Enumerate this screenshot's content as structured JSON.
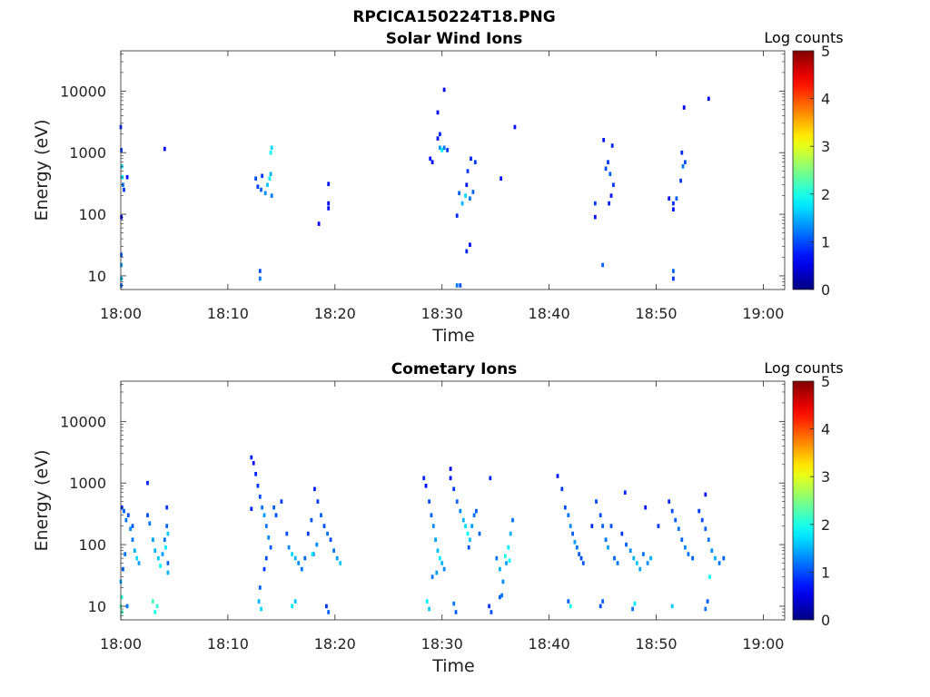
{
  "figure": {
    "title": "RPCICA150224T18.PNG"
  },
  "chart_data": [
    {
      "type": "heatmap",
      "title": "Solar Wind Ions",
      "xlabel": "Time",
      "ylabel": "Energy (eV)",
      "yscale": "log",
      "ylim": [
        6,
        45000
      ],
      "xlim_minutes": [
        0,
        62
      ],
      "xtick_labels": [
        "18:00",
        "18:10",
        "18:20",
        "18:30",
        "18:40",
        "18:50",
        "19:00"
      ],
      "ytick_labels": [
        "10",
        "100",
        "1000",
        "10000"
      ],
      "colorbar": {
        "label": "Log counts",
        "range": [
          0,
          5
        ],
        "ticks": [
          "0",
          "1",
          "2",
          "3",
          "4",
          "5"
        ],
        "colormap": "jet"
      },
      "cells": [
        [
          0.0,
          2600,
          0.8
        ],
        [
          0.05,
          1100,
          0.9
        ],
        [
          0.1,
          600,
          1.7
        ],
        [
          0.15,
          400,
          1.8
        ],
        [
          0.2,
          300,
          1.2
        ],
        [
          0.3,
          250,
          0.9
        ],
        [
          0.05,
          90,
          0.6
        ],
        [
          0.05,
          22,
          1.1
        ],
        [
          0.05,
          15,
          1.4
        ],
        [
          0.05,
          9,
          1.6
        ],
        [
          0.05,
          7,
          1.2
        ],
        [
          0.6,
          400,
          0.7
        ],
        [
          4.1,
          1150,
          0.6
        ],
        [
          12.6,
          380,
          1.0
        ],
        [
          12.8,
          280,
          0.9
        ],
        [
          13.1,
          250,
          1.1
        ],
        [
          13.5,
          220,
          1.3
        ],
        [
          13.7,
          300,
          1.6
        ],
        [
          13.9,
          380,
          1.8
        ],
        [
          14.0,
          450,
          1.5
        ],
        [
          14.1,
          200,
          1.2
        ],
        [
          14.0,
          1000,
          1.9
        ],
        [
          14.1,
          1200,
          1.7
        ],
        [
          13.2,
          420,
          0.9
        ],
        [
          13.0,
          12,
          1.0
        ],
        [
          13.0,
          9,
          1.2
        ],
        [
          19.4,
          310,
          0.7
        ],
        [
          19.4,
          150,
          0.6
        ],
        [
          19.4,
          125,
          0.7
        ],
        [
          18.5,
          70,
          0.6
        ],
        [
          29.6,
          1700,
          0.7
        ],
        [
          29.8,
          1200,
          1.4
        ],
        [
          30.0,
          1100,
          1.8
        ],
        [
          30.2,
          1200,
          1.2
        ],
        [
          30.5,
          1100,
          0.9
        ],
        [
          29.8,
          2000,
          0.8
        ],
        [
          30.2,
          10500,
          0.6
        ],
        [
          29.6,
          4500,
          0.6
        ],
        [
          28.9,
          800,
          0.7
        ],
        [
          29.1,
          700,
          0.6
        ],
        [
          31.6,
          220,
          1.1
        ],
        [
          31.9,
          150,
          1.5
        ],
        [
          32.2,
          200,
          1.7
        ],
        [
          32.6,
          180,
          1.2
        ],
        [
          32.9,
          230,
          1.1
        ],
        [
          32.4,
          500,
          0.9
        ],
        [
          32.7,
          800,
          0.8
        ],
        [
          33.1,
          700,
          0.9
        ],
        [
          32.3,
          300,
          0.7
        ],
        [
          31.4,
          95,
          0.8
        ],
        [
          32.3,
          25,
          0.8
        ],
        [
          32.6,
          32,
          0.7
        ],
        [
          31.4,
          7,
          1.2
        ],
        [
          31.7,
          7,
          1.0
        ],
        [
          35.5,
          380,
          0.7
        ],
        [
          36.8,
          2600,
          0.7
        ],
        [
          44.3,
          150,
          0.9
        ],
        [
          44.3,
          90,
          0.7
        ],
        [
          45.1,
          1600,
          0.7
        ],
        [
          45.3,
          550,
          1.0
        ],
        [
          45.5,
          700,
          0.9
        ],
        [
          45.7,
          450,
          1.1
        ],
        [
          45.9,
          1300,
          0.8
        ],
        [
          46.0,
          300,
          0.9
        ],
        [
          45.8,
          200,
          0.7
        ],
        [
          45.6,
          150,
          0.8
        ],
        [
          45.0,
          15,
          1.1
        ],
        [
          51.2,
          180,
          0.7
        ],
        [
          51.6,
          150,
          0.9
        ],
        [
          51.9,
          180,
          1.1
        ],
        [
          52.3,
          350,
          0.9
        ],
        [
          52.5,
          600,
          1.2
        ],
        [
          52.7,
          700,
          1.0
        ],
        [
          52.4,
          1000,
          0.8
        ],
        [
          52.6,
          5400,
          0.6
        ],
        [
          51.6,
          120,
          0.7
        ],
        [
          51.6,
          12,
          1.1
        ],
        [
          51.6,
          9,
          0.9
        ],
        [
          54.9,
          7500,
          0.6
        ]
      ]
    },
    {
      "type": "heatmap",
      "title": "Cometary Ions",
      "xlabel": "Time",
      "ylabel": "Energy (eV)",
      "yscale": "log",
      "ylim": [
        6,
        45000
      ],
      "xlim_minutes": [
        0,
        62
      ],
      "xtick_labels": [
        "18:00",
        "18:10",
        "18:20",
        "18:30",
        "18:40",
        "18:50",
        "19:00"
      ],
      "ytick_labels": [
        "10",
        "100",
        "1000",
        "10000"
      ],
      "colorbar": {
        "label": "Log counts",
        "range": [
          0,
          5
        ],
        "ticks": [
          "0",
          "1",
          "2",
          "3",
          "4",
          "5"
        ],
        "colormap": "jet"
      },
      "cells": [
        [
          0.1,
          400,
          0.8
        ],
        [
          0.3,
          350,
          1.1
        ],
        [
          0.5,
          250,
          1.2
        ],
        [
          0.7,
          300,
          1.0
        ],
        [
          0.9,
          180,
          1.3
        ],
        [
          1.1,
          120,
          1.2
        ],
        [
          1.3,
          80,
          1.5
        ],
        [
          1.5,
          60,
          1.7
        ],
        [
          1.7,
          50,
          1.4
        ],
        [
          1.1,
          200,
          1.1
        ],
        [
          2.5,
          300,
          1.0
        ],
        [
          2.7,
          220,
          1.2
        ],
        [
          3.0,
          120,
          1.4
        ],
        [
          3.2,
          80,
          1.5
        ],
        [
          3.5,
          60,
          1.6
        ],
        [
          3.7,
          45,
          1.9
        ],
        [
          3.9,
          70,
          1.4
        ],
        [
          4.1,
          120,
          1.2
        ],
        [
          4.3,
          200,
          1.1
        ],
        [
          4.3,
          400,
          0.9
        ],
        [
          2.5,
          1000,
          0.8
        ],
        [
          0.4,
          70,
          1.2
        ],
        [
          0.2,
          40,
          1.1
        ],
        [
          0.0,
          25,
          1.5
        ],
        [
          0.0,
          10,
          2.3
        ],
        [
          0.1,
          14,
          2.1
        ],
        [
          0.1,
          8,
          2.2
        ],
        [
          0.6,
          10,
          1.2
        ],
        [
          3.0,
          12,
          2.2
        ],
        [
          3.4,
          10,
          2.1
        ],
        [
          3.2,
          8,
          2.0
        ],
        [
          4.4,
          50,
          1.1
        ],
        [
          4.4,
          35,
          1.5
        ],
        [
          4.2,
          90,
          1.8
        ],
        [
          4.4,
          150,
          1.6
        ],
        [
          12.2,
          2600,
          0.8
        ],
        [
          12.4,
          2100,
          0.7
        ],
        [
          12.6,
          1400,
          0.8
        ],
        [
          12.8,
          900,
          0.9
        ],
        [
          13.0,
          600,
          1.0
        ],
        [
          13.2,
          400,
          1.2
        ],
        [
          13.4,
          300,
          1.4
        ],
        [
          13.6,
          200,
          1.2
        ],
        [
          13.8,
          130,
          1.3
        ],
        [
          14.0,
          90,
          1.1
        ],
        [
          13.6,
          60,
          1.0
        ],
        [
          13.4,
          40,
          0.9
        ],
        [
          13.0,
          20,
          1.1
        ],
        [
          14.3,
          400,
          1.1
        ],
        [
          14.5,
          300,
          1.0
        ],
        [
          12.2,
          380,
          0.8
        ],
        [
          15.0,
          500,
          0.9
        ],
        [
          15.5,
          150,
          1.0
        ],
        [
          15.7,
          90,
          1.3
        ],
        [
          16.0,
          70,
          1.7
        ],
        [
          16.3,
          60,
          1.5
        ],
        [
          16.6,
          50,
          1.3
        ],
        [
          16.9,
          40,
          1.2
        ],
        [
          17.2,
          60,
          1.1
        ],
        [
          17.5,
          150,
          0.9
        ],
        [
          17.8,
          250,
          1.0
        ],
        [
          18.1,
          800,
          0.8
        ],
        [
          18.4,
          500,
          0.9
        ],
        [
          18.7,
          300,
          1.1
        ],
        [
          19.0,
          200,
          1.0
        ],
        [
          19.3,
          150,
          1.2
        ],
        [
          19.6,
          120,
          1.0
        ],
        [
          19.9,
          80,
          1.2
        ],
        [
          20.2,
          60,
          1.4
        ],
        [
          20.5,
          50,
          1.6
        ],
        [
          18.3,
          100,
          1.3
        ],
        [
          18.0,
          70,
          1.2
        ],
        [
          12.9,
          12,
          1.5
        ],
        [
          13.1,
          9,
          1.7
        ],
        [
          16.0,
          10,
          1.8
        ],
        [
          16.3,
          12,
          1.6
        ],
        [
          19.2,
          10,
          0.9
        ],
        [
          19.4,
          8,
          1.1
        ],
        [
          17.9,
          70,
          1.8
        ],
        [
          28.3,
          1200,
          0.8
        ],
        [
          28.5,
          900,
          0.7
        ],
        [
          28.8,
          500,
          1.0
        ],
        [
          29.0,
          300,
          1.1
        ],
        [
          29.2,
          200,
          1.3
        ],
        [
          29.4,
          120,
          1.4
        ],
        [
          29.6,
          80,
          1.6
        ],
        [
          29.8,
          60,
          1.8
        ],
        [
          30.0,
          50,
          1.5
        ],
        [
          30.2,
          40,
          1.3
        ],
        [
          29.5,
          35,
          1.4
        ],
        [
          29.1,
          30,
          1.2
        ],
        [
          30.8,
          1200,
          0.7
        ],
        [
          31.1,
          800,
          0.9
        ],
        [
          31.4,
          500,
          1.1
        ],
        [
          31.7,
          350,
          1.3
        ],
        [
          32.0,
          250,
          1.5
        ],
        [
          32.2,
          200,
          1.7
        ],
        [
          32.4,
          150,
          1.9
        ],
        [
          32.6,
          120,
          1.6
        ],
        [
          32.8,
          200,
          1.4
        ],
        [
          33.0,
          300,
          1.2
        ],
        [
          33.2,
          350,
          1.1
        ],
        [
          32.5,
          90,
          1.0
        ],
        [
          33.5,
          150,
          1.1
        ],
        [
          30.8,
          1700,
          0.6
        ],
        [
          34.5,
          1200,
          0.8
        ],
        [
          35.1,
          60,
          1.2
        ],
        [
          35.4,
          40,
          1.5
        ],
        [
          35.7,
          25,
          1.3
        ],
        [
          36.0,
          50,
          1.4
        ],
        [
          36.2,
          90,
          1.8
        ],
        [
          36.4,
          150,
          1.5
        ],
        [
          36.6,
          250,
          1.2
        ],
        [
          35.9,
          65,
          2.0
        ],
        [
          36.3,
          55,
          1.9
        ],
        [
          28.6,
          12,
          1.8
        ],
        [
          28.8,
          9,
          1.6
        ],
        [
          31.1,
          11,
          1.2
        ],
        [
          31.3,
          8,
          1.1
        ],
        [
          34.4,
          10,
          0.9
        ],
        [
          34.6,
          8,
          1.0
        ],
        [
          35.4,
          14,
          1.1
        ],
        [
          35.6,
          15,
          1.2
        ],
        [
          40.8,
          1300,
          0.7
        ],
        [
          41.2,
          800,
          0.9
        ],
        [
          41.5,
          400,
          1.0
        ],
        [
          42.0,
          200,
          1.3
        ],
        [
          42.2,
          150,
          1.1
        ],
        [
          42.4,
          110,
          1.4
        ],
        [
          42.6,
          90,
          1.2
        ],
        [
          42.8,
          70,
          1.1
        ],
        [
          43.0,
          60,
          1.0
        ],
        [
          43.2,
          50,
          1.1
        ],
        [
          41.8,
          300,
          1.2
        ],
        [
          44.0,
          200,
          0.8
        ],
        [
          44.4,
          500,
          1.0
        ],
        [
          44.8,
          300,
          1.0
        ],
        [
          45.0,
          200,
          1.1
        ],
        [
          45.3,
          120,
          1.2
        ],
        [
          45.5,
          90,
          1.4
        ],
        [
          45.8,
          200,
          1.0
        ],
        [
          46.1,
          60,
          1.1
        ],
        [
          46.4,
          50,
          1.2
        ],
        [
          46.8,
          150,
          0.9
        ],
        [
          47.2,
          100,
          1.1
        ],
        [
          47.6,
          80,
          1.3
        ],
        [
          47.9,
          60,
          1.5
        ],
        [
          48.2,
          50,
          1.6
        ],
        [
          48.5,
          40,
          1.4
        ],
        [
          48.8,
          70,
          1.2
        ],
        [
          49.2,
          50,
          1.3
        ],
        [
          49.5,
          60,
          1.5
        ],
        [
          50.2,
          200,
          0.9
        ],
        [
          51.2,
          500,
          0.8
        ],
        [
          51.5,
          350,
          1.0
        ],
        [
          51.8,
          250,
          1.1
        ],
        [
          52.1,
          180,
          1.2
        ],
        [
          52.4,
          120,
          1.1
        ],
        [
          52.7,
          90,
          1.3
        ],
        [
          53.0,
          70,
          1.2
        ],
        [
          53.4,
          60,
          1.1
        ],
        [
          54.0,
          350,
          0.9
        ],
        [
          54.3,
          250,
          1.0
        ],
        [
          54.6,
          180,
          1.1
        ],
        [
          54.9,
          120,
          1.2
        ],
        [
          55.2,
          80,
          1.3
        ],
        [
          55.5,
          60,
          1.5
        ],
        [
          55.9,
          50,
          1.2
        ],
        [
          56.3,
          60,
          1.1
        ],
        [
          47.1,
          700,
          0.8
        ],
        [
          49.0,
          400,
          0.7
        ],
        [
          54.6,
          650,
          0.7
        ],
        [
          41.8,
          12,
          1.1
        ],
        [
          42.0,
          10,
          1.9
        ],
        [
          44.8,
          10,
          1.0
        ],
        [
          45.0,
          12,
          1.1
        ],
        [
          47.8,
          9,
          1.2
        ],
        [
          48.0,
          11,
          1.8
        ],
        [
          51.5,
          10,
          1.6
        ],
        [
          54.6,
          9,
          1.2
        ],
        [
          54.8,
          12,
          1.1
        ],
        [
          55.0,
          30,
          1.9
        ]
      ]
    }
  ]
}
